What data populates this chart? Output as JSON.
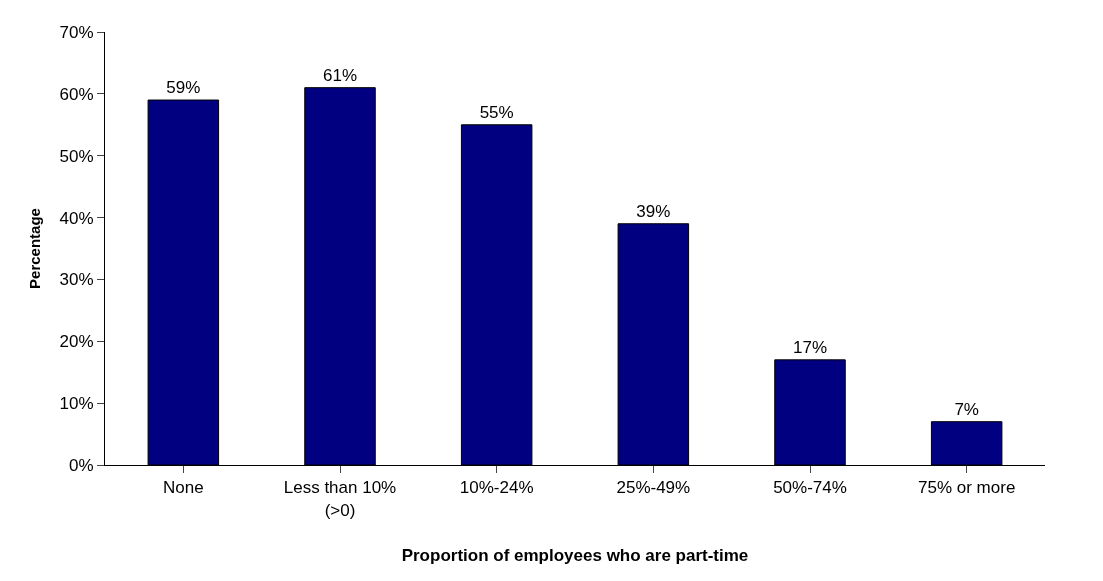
{
  "chart_data": {
    "type": "bar",
    "xlabel": "Proportion of employees who are part-time",
    "ylabel": "Percentage",
    "categories": [
      "None",
      "Less than 10%\n(>0)",
      "10%-24%",
      "25%-49%",
      "50%-74%",
      "75% or more"
    ],
    "values": [
      59,
      61,
      55,
      39,
      17,
      7
    ],
    "value_labels": [
      "59%",
      "61%",
      "55%",
      "39%",
      "17%",
      "7%"
    ],
    "color": "#000080",
    "yticks": [
      {
        "value": 0,
        "label": "0%"
      },
      {
        "value": 10,
        "label": "10%"
      },
      {
        "value": 20,
        "label": "20%"
      },
      {
        "value": 30,
        "label": "30%"
      },
      {
        "value": 40,
        "label": "40%"
      },
      {
        "value": 50,
        "label": "50%"
      },
      {
        "value": 60,
        "label": "60%"
      },
      {
        "value": 70,
        "label": "70%"
      }
    ],
    "ylim": [
      0,
      70
    ]
  }
}
